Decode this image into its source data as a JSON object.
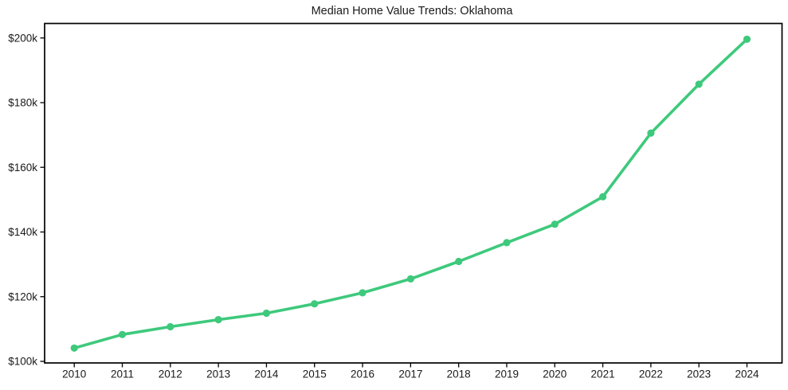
{
  "figure": {
    "background_color": "#ffffff",
    "text_color": "#1a1a1a",
    "spine_color": "#000000"
  },
  "chart_data": {
    "type": "line",
    "title": "Median Home Value Trends: Oklahoma",
    "xlabel": "",
    "ylabel": "",
    "x": [
      2010,
      2011,
      2012,
      2013,
      2014,
      2015,
      2016,
      2017,
      2018,
      2019,
      2020,
      2021,
      2022,
      2023,
      2024
    ],
    "xtick_labels": [
      "2010",
      "2011",
      "2012",
      "2013",
      "2014",
      "2015",
      "2016",
      "2017",
      "2018",
      "2019",
      "2020",
      "2021",
      "2022",
      "2023",
      "2024"
    ],
    "series": [
      {
        "name": "Median Home Value",
        "values": [
          104100,
          108300,
          110700,
          112900,
          114900,
          117800,
          121200,
          125500,
          130900,
          136700,
          142400,
          150900,
          170600,
          185700,
          199600
        ]
      }
    ],
    "ylim": [
      100000,
      200000
    ],
    "yticks": [
      100000,
      120000,
      140000,
      160000,
      180000,
      200000
    ],
    "ytick_labels": [
      "$100k",
      "$120k",
      "$140k",
      "$160k",
      "$180k",
      "$200k"
    ],
    "line_color": "#3ec97c",
    "marker": "circle",
    "grid": false,
    "legend_position": "none",
    "border": "full-box"
  }
}
